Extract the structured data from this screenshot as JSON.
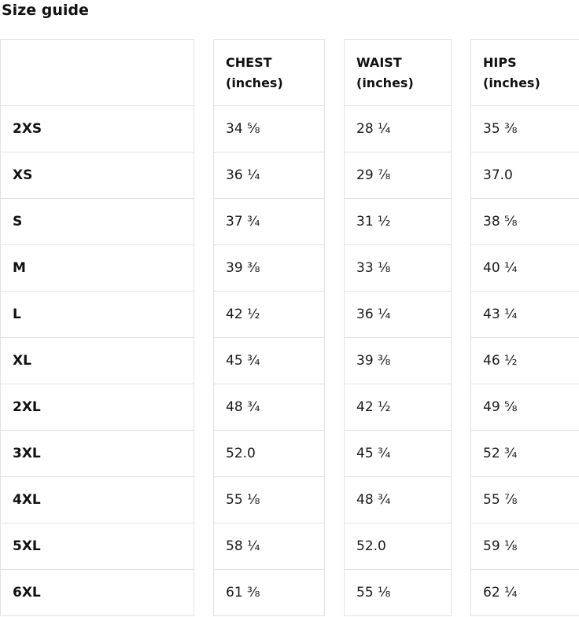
{
  "title": "Size guide",
  "colors": {
    "border": "#e2e2e2",
    "text": "#111111",
    "background": "#ffffff"
  },
  "table": {
    "headers": [
      "",
      "CHEST\n(inches)",
      "WAIST\n(inches)",
      "HIPS\n(inches)"
    ],
    "rows": [
      {
        "size": "2XS",
        "chest": "34 ⅝",
        "waist": "28 ¼",
        "hips": "35 ⅜"
      },
      {
        "size": "XS",
        "chest": "36 ¼",
        "waist": "29 ⅞",
        "hips": "37.0"
      },
      {
        "size": "S",
        "chest": "37 ¾",
        "waist": "31 ½",
        "hips": "38 ⅝"
      },
      {
        "size": "M",
        "chest": "39 ⅜",
        "waist": "33 ⅛",
        "hips": "40 ¼"
      },
      {
        "size": "L",
        "chest": "42 ½",
        "waist": "36 ¼",
        "hips": "43 ¼"
      },
      {
        "size": "XL",
        "chest": "45 ¾",
        "waist": "39 ⅜",
        "hips": "46 ½"
      },
      {
        "size": "2XL",
        "chest": "48 ¾",
        "waist": "42 ½",
        "hips": "49 ⅝"
      },
      {
        "size": "3XL",
        "chest": "52.0",
        "waist": "45 ¾",
        "hips": "52 ¾"
      },
      {
        "size": "4XL",
        "chest": "55 ⅛",
        "waist": "48 ¾",
        "hips": "55 ⅞"
      },
      {
        "size": "5XL",
        "chest": "58 ¼",
        "waist": "52.0",
        "hips": "59 ⅛"
      },
      {
        "size": "6XL",
        "chest": "61 ⅜",
        "waist": "55 ⅛",
        "hips": "62 ¼"
      }
    ]
  }
}
